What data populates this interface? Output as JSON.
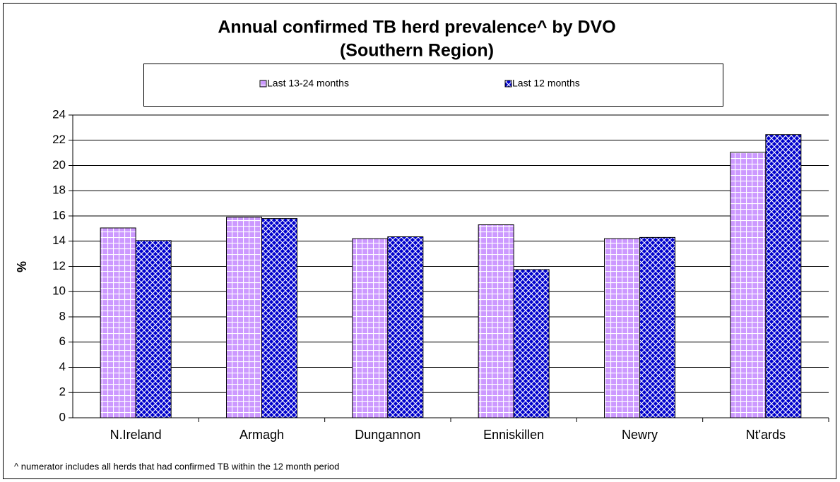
{
  "chart_data": {
    "type": "bar",
    "title": "Annual confirmed TB herd prevalence^ by DVO",
    "subtitle": "(Southern Region)",
    "y_label": "%",
    "footnote": "^ numerator includes all herds that had confirmed TB within the 12 month period",
    "categories": [
      "N.Ireland",
      "Armagh",
      "Dungannon",
      "Enniskillen",
      "Newry",
      "Nt'ards"
    ],
    "series": [
      {
        "name": "Last 13-24 months",
        "color": "#cc99ff",
        "values": [
          15.05,
          15.9,
          14.2,
          15.3,
          14.2,
          21.05
        ]
      },
      {
        "name": "Last 12 months",
        "color": "#0000cc",
        "values": [
          14.05,
          15.8,
          14.35,
          11.75,
          14.3,
          22.45
        ]
      }
    ],
    "ylim": [
      0,
      24
    ],
    "yticks": [
      0,
      2,
      4,
      6,
      8,
      10,
      12,
      14,
      16,
      18,
      20,
      22,
      24
    ],
    "grid": true
  }
}
